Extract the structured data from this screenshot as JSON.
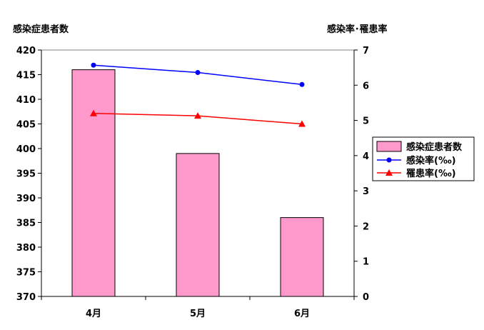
{
  "chart_data": {
    "type": "bar",
    "categories": [
      "4月",
      "5月",
      "6月"
    ],
    "y_left": {
      "label": "感染症患者数",
      "ylim": [
        370,
        420
      ],
      "ticks": [
        "370",
        "375",
        "380",
        "385",
        "390",
        "395",
        "400",
        "405",
        "410",
        "415",
        "420"
      ]
    },
    "y_right": {
      "label": "感染率･罹患率",
      "ylim": [
        0,
        7
      ],
      "ticks": [
        "0",
        "1",
        "2",
        "3",
        "4",
        "5",
        "6",
        "7"
      ]
    },
    "series": [
      {
        "name": "感染症患者数",
        "type": "bar",
        "axis": "left",
        "values": [
          416,
          399,
          386
        ],
        "color": "#ff99cc"
      },
      {
        "name": "感染率(‰)",
        "type": "line",
        "axis": "right",
        "marker": "circle",
        "values": [
          6.57,
          6.36,
          6.02
        ],
        "color": "#0000ff"
      },
      {
        "name": "罹患率(‰)",
        "type": "line",
        "axis": "right",
        "marker": "triangle",
        "values": [
          5.2,
          5.13,
          4.9
        ],
        "color": "#ff0000"
      }
    ],
    "legend_position": "right",
    "grid": false
  }
}
